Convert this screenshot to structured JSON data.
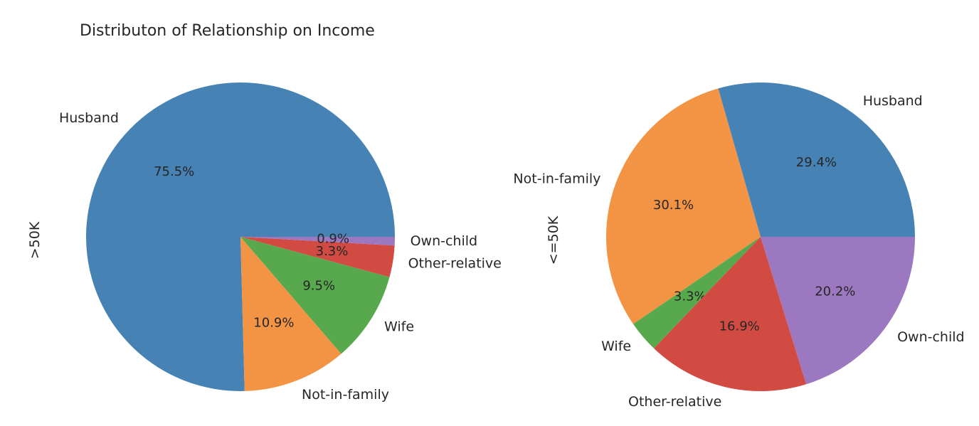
{
  "chart_data": [
    {
      "type": "pie",
      "title": "Distributon of Relationship on Income",
      "ylabel": ">50K",
      "autopct": true,
      "slices": [
        {
          "label": "Husband",
          "value": 75.5,
          "pct_label": "75.5%",
          "color": "#4682b4"
        },
        {
          "label": "Not-in-family",
          "value": 10.9,
          "pct_label": "10.9%",
          "color": "#f39445"
        },
        {
          "label": "Wife",
          "value": 9.5,
          "pct_label": "9.5%",
          "color": "#58a84e"
        },
        {
          "label": "Other-relative",
          "value": 3.3,
          "pct_label": "3.3%",
          "color": "#d24b43"
        },
        {
          "label": "Own-child",
          "value": 0.9,
          "pct_label": "0.9%",
          "color": "#9b78c0"
        }
      ]
    },
    {
      "type": "pie",
      "title": "",
      "ylabel": "<=50K",
      "autopct": true,
      "slices": [
        {
          "label": "Husband",
          "value": 29.4,
          "pct_label": "29.4%",
          "color": "#4682b4"
        },
        {
          "label": "Not-in-family",
          "value": 30.1,
          "pct_label": "30.1%",
          "color": "#f39445"
        },
        {
          "label": "Wife",
          "value": 3.3,
          "pct_label": "3.3%",
          "color": "#58a84e"
        },
        {
          "label": "Other-relative",
          "value": 16.9,
          "pct_label": "16.9%",
          "color": "#d24b43"
        },
        {
          "label": "Own-child",
          "value": 20.2,
          "pct_label": "20.2%",
          "color": "#9b78c0"
        }
      ]
    }
  ]
}
